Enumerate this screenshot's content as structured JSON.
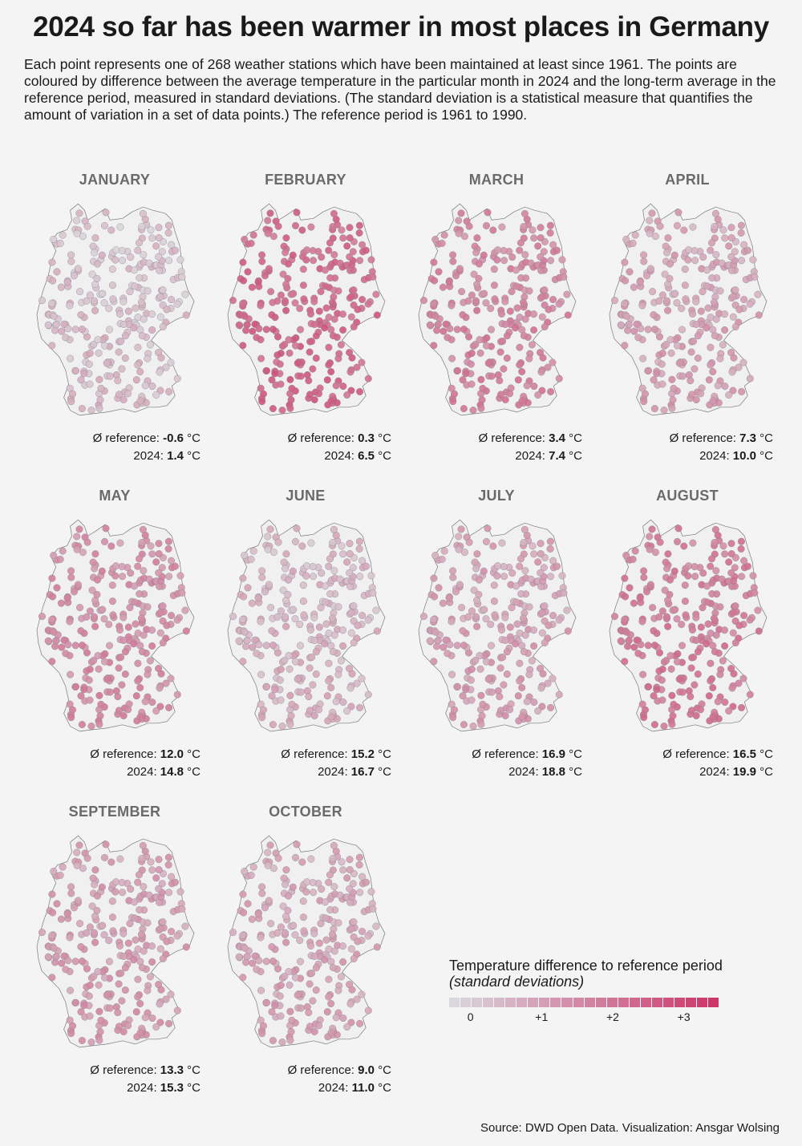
{
  "title": "2024 so far has been warmer in most places in Germany",
  "subtitle": "Each point represents one of 268 weather stations which have been maintained at least since 1961. The points are coloured by difference between the average temperature in the particular month in 2024 and the long-term average in the reference period, measured in standard deviations. (The standard deviation is a statistical measure that quantifies the amount of variation in a set of data points.) The reference period is 1961 to 1990.",
  "reference_prefix": "Ø reference: ",
  "year_prefix": "2024: ",
  "unit": " °C",
  "months": [
    {
      "name": "JANUARY",
      "reference": "-0.6",
      "y2024": "1.4",
      "sd_mean": 0.35
    },
    {
      "name": "FEBRUARY",
      "reference": "0.3",
      "y2024": "6.5",
      "sd_mean": 2.35
    },
    {
      "name": "MARCH",
      "reference": "3.4",
      "y2024": "7.4",
      "sd_mean": 1.7
    },
    {
      "name": "APRIL",
      "reference": "7.3",
      "y2024": "10.0",
      "sd_mean": 1.0
    },
    {
      "name": "MAY",
      "reference": "12.0",
      "y2024": "14.8",
      "sd_mean": 1.5
    },
    {
      "name": "JUNE",
      "reference": "15.2",
      "y2024": "16.7",
      "sd_mean": 0.6
    },
    {
      "name": "JULY",
      "reference": "16.9",
      "y2024": "18.8",
      "sd_mean": 1.05
    },
    {
      "name": "AUGUST",
      "reference": "16.5",
      "y2024": "19.9",
      "sd_mean": 1.9
    },
    {
      "name": "SEPTEMBER",
      "reference": "13.3",
      "y2024": "15.3",
      "sd_mean": 1.15
    },
    {
      "name": "OCTOBER",
      "reference": "9.0",
      "y2024": "11.0",
      "sd_mean": 0.95
    }
  ],
  "legend": {
    "title": "Temperature difference to reference period",
    "subtitle": "(standard deviations)",
    "ticks": [
      "0",
      "+1",
      "+2",
      "+3"
    ],
    "scale_min": -0.3,
    "scale_max": 3.5,
    "color_low": "#d9d9de",
    "color_high": "#cc3366"
  },
  "source": "Source: DWD Open Data. Visualization: Ansgar Wolsing"
}
